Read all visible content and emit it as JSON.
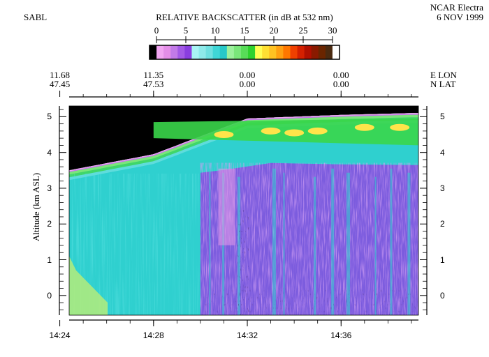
{
  "header": {
    "instrument": "SABL",
    "title": "RELATIVE BACKSCATTER (in dB at 532 nm)",
    "platform": "NCAR Electra",
    "date": "6 NOV 1999"
  },
  "colorbar": {
    "ticks": [
      "0",
      "5",
      "10",
      "15",
      "20",
      "25",
      "30"
    ],
    "range": [
      0,
      30
    ],
    "colors": [
      "#000000",
      "#f2a6f2",
      "#e48ee8",
      "#c27ae8",
      "#a35ae6",
      "#8a3ee0",
      "#a8f4f4",
      "#8eeaea",
      "#6fe0e0",
      "#3fd6d6",
      "#26c8c8",
      "#9cf09c",
      "#7ae67a",
      "#58dc58",
      "#2ed22e",
      "#ffff55",
      "#ffe033",
      "#ffc222",
      "#ffa011",
      "#ff7700",
      "#f04000",
      "#d42000",
      "#b01000",
      "#8a1a00",
      "#6a2500",
      "#4a2a10",
      "#ffffff"
    ]
  },
  "top_axis": {
    "lon_label": "E LON",
    "lat_label": "N LAT",
    "ticks": [
      {
        "lon": "11.68",
        "lat": "47.45"
      },
      {
        "lon": "11.35",
        "lat": "47.53"
      },
      {
        "lon": "0.00",
        "lat": "0.00"
      },
      {
        "lon": "0.00",
        "lat": "0.00"
      }
    ]
  },
  "chart_data": {
    "type": "heatmap",
    "title": "RELATIVE BACKSCATTER (in dB at 532 nm)",
    "ylabel": "Altitude (km ASL)",
    "xlabel": "",
    "ylim": [
      -0.55,
      5.3
    ],
    "y_ticks": [
      "0",
      "1",
      "2",
      "3",
      "4",
      "5"
    ],
    "x_ticks": [
      "14:24",
      "14:28",
      "14:32",
      "14:36"
    ],
    "x_range_minutes": [
      14.4,
      29.3
    ],
    "color_scale_db": [
      0,
      30
    ],
    "cloud_top_km": [
      {
        "t": "14:24",
        "km": 3.45
      },
      {
        "t": "14:28",
        "km": 3.95
      },
      {
        "t": "14:32",
        "km": 4.95
      },
      {
        "t": "14:36",
        "km": 5.05
      },
      {
        "t": "14:39",
        "km": 5.1
      }
    ],
    "high_backscatter_layer_km": [
      4.2,
      4.8
    ],
    "high_backscatter_layer_db": [
      20,
      25
    ],
    "lower_region_db": [
      8,
      12
    ],
    "low_region_db_after_1430": [
      2,
      6
    ]
  }
}
